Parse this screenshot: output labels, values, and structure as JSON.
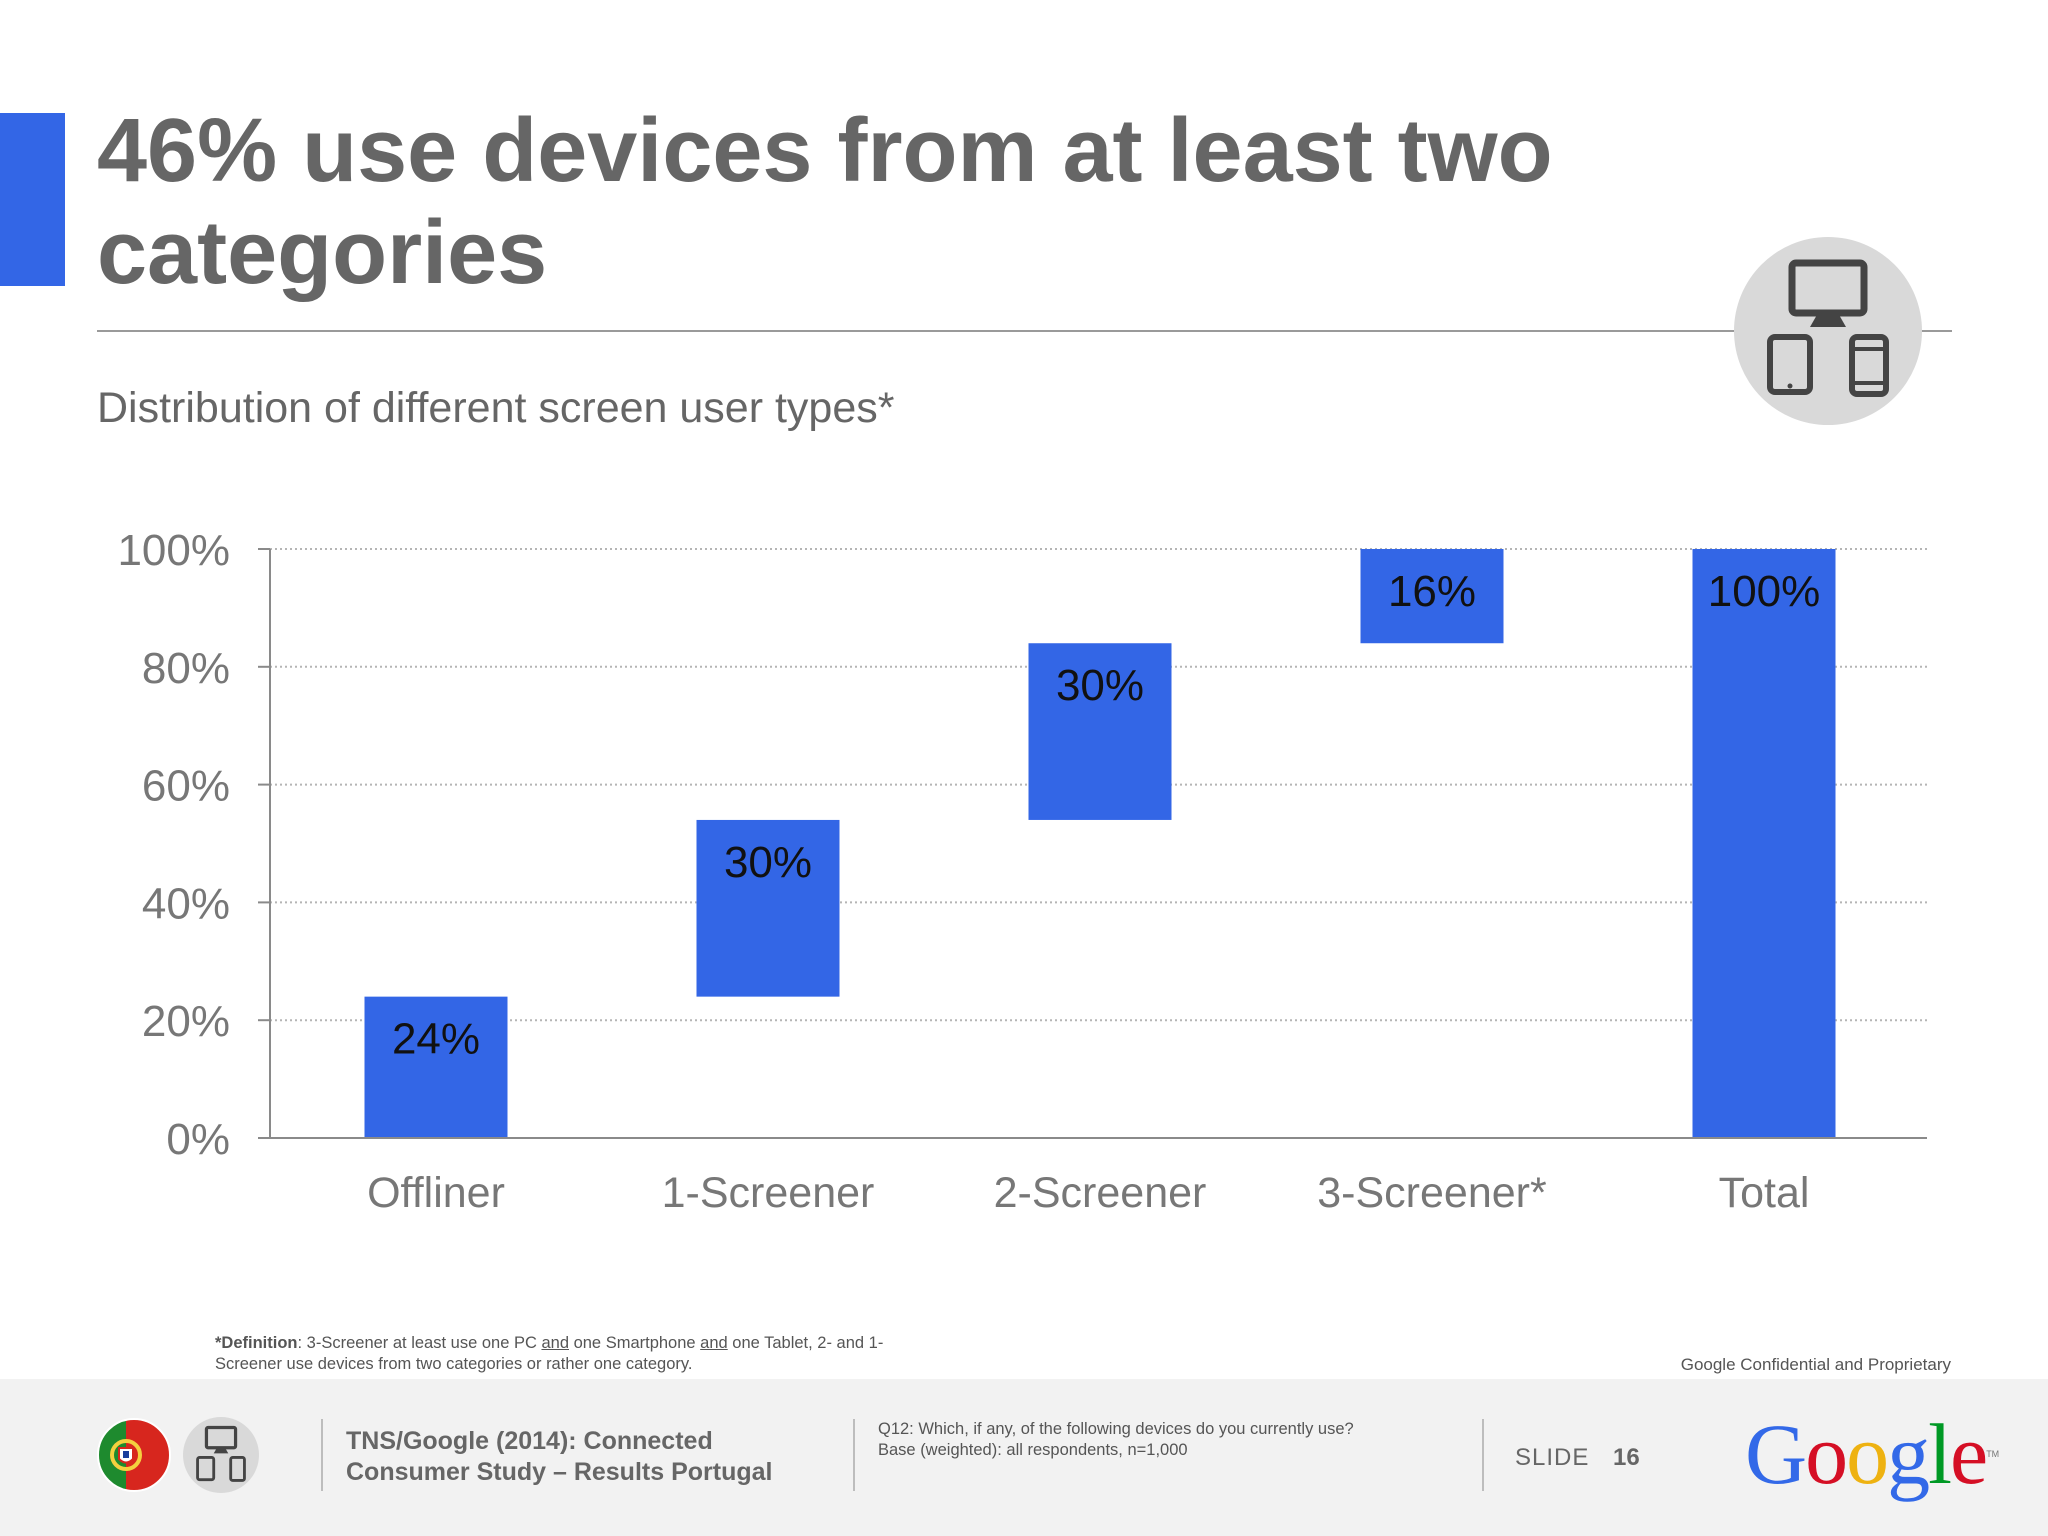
{
  "header": {
    "title": "46% use devices from at least two categories",
    "subtitle": "Distribution of different screen user types*",
    "accent_color": "#3366e6",
    "badge_icon": "multi-device-icon"
  },
  "chart_data": {
    "type": "bar",
    "subtype": "waterfall",
    "categories": [
      "Offliner",
      "1-Screener",
      "2-Screener",
      "3-Screener*",
      "Total"
    ],
    "values": [
      24,
      30,
      30,
      16,
      100
    ],
    "ranges": [
      [
        0,
        24
      ],
      [
        24,
        54
      ],
      [
        54,
        84
      ],
      [
        84,
        100
      ],
      [
        0,
        100
      ]
    ],
    "value_labels": [
      "24%",
      "30%",
      "30%",
      "16%",
      "100%"
    ],
    "y_ticks": [
      "0%",
      "20%",
      "40%",
      "60%",
      "80%",
      "100%"
    ],
    "ylim": [
      0,
      100
    ],
    "grid": true,
    "bar_color": "#3366e6",
    "legend": "none"
  },
  "footnote": {
    "label": "*Definition",
    "p1": ": 3-Screener at least use one PC ",
    "and1": "and",
    "p2": " one Smartphone ",
    "and2": "and",
    "p3": " one Tablet, 2- and 1-Screener use devices from two categories or rather one category."
  },
  "confidential": "Google Confidential and Proprietary",
  "footer": {
    "flag_icon": "portugal-flag-icon",
    "device_icon": "multi-device-icon",
    "source_line1": "TNS/Google (2014): Connected",
    "source_line2": "Consumer Study – Results Portugal",
    "question_line1": "Q12: Which, if any, of the following devices do you currently use?",
    "question_line2": "Base (weighted): all respondents, n=1,000",
    "slide_label": "SLIDE",
    "slide_number": "16",
    "logo_text": "Google",
    "logo_tm": "TM"
  }
}
